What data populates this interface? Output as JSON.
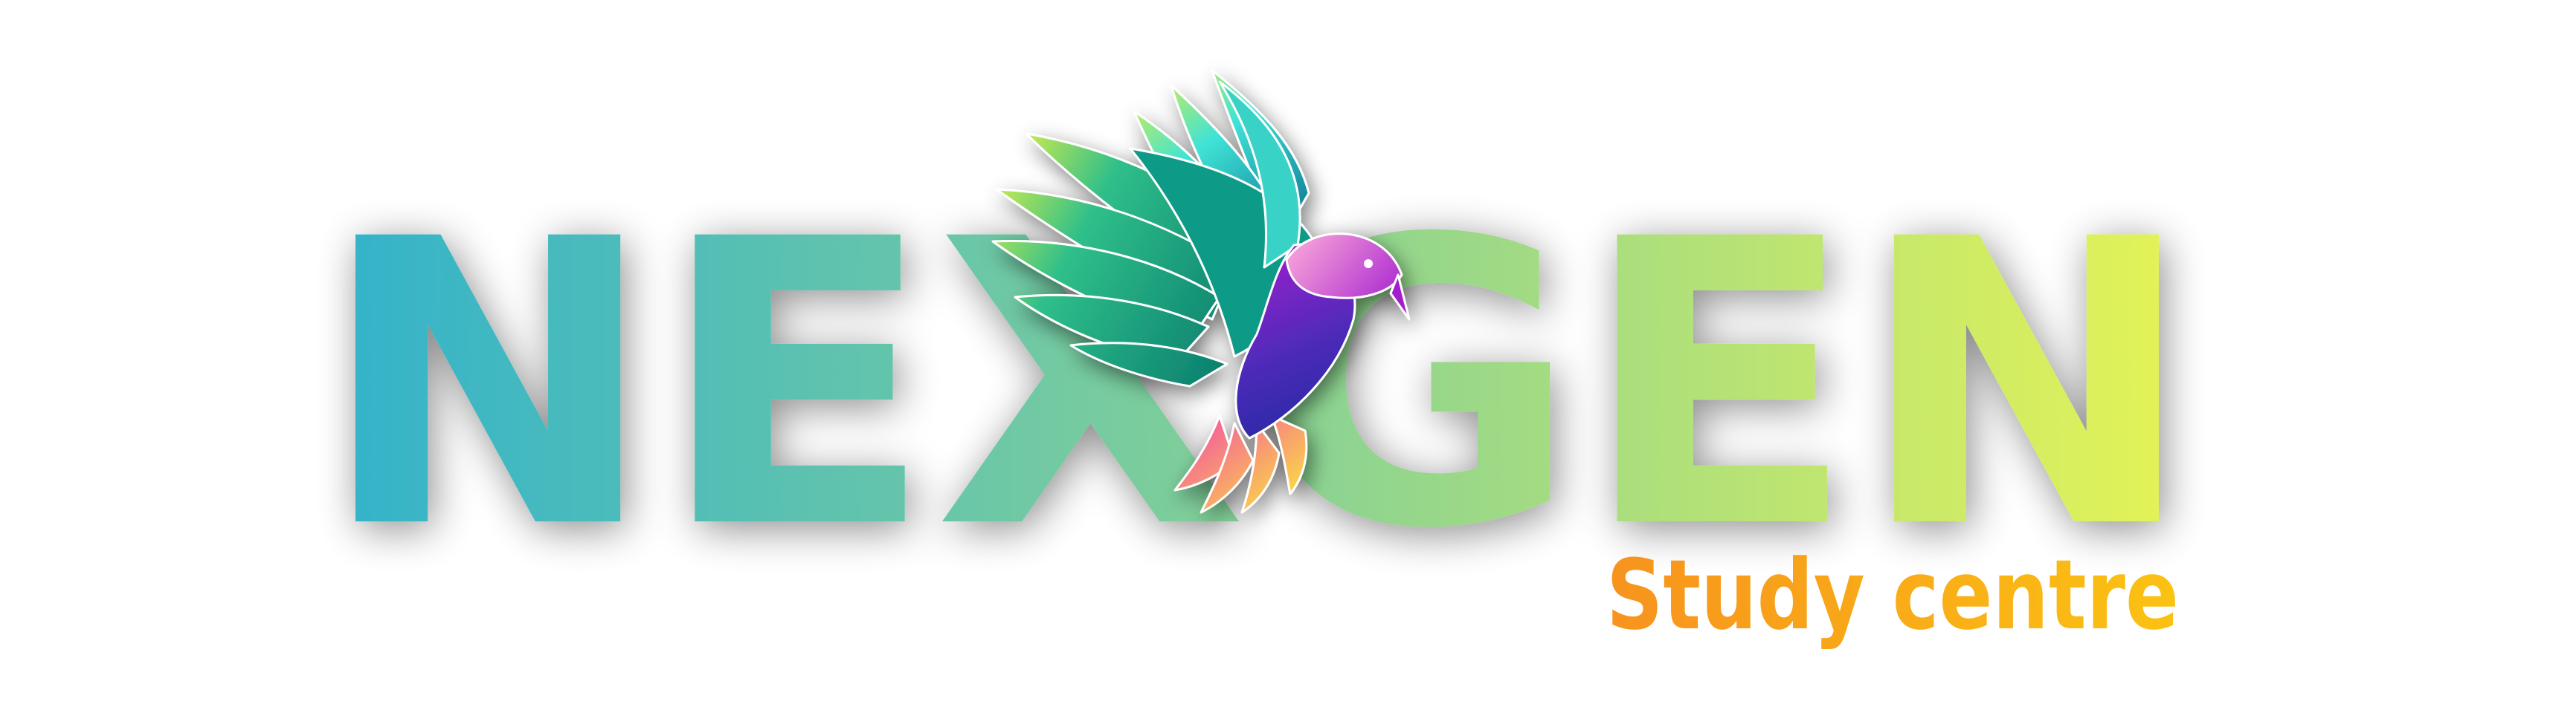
{
  "logo": {
    "wordmark": "NEXGEN",
    "tagline": "Study centre"
  },
  "colors": {
    "wordmark_gradient_start": "#31b2cc",
    "wordmark_gradient_mid": "#7ccd9c",
    "wordmark_gradient_end": "#e6f455",
    "tagline_gradient_start": "#f7931e",
    "tagline_gradient_end": "#fbc312",
    "bird_wing_dark": "#0a7e6e",
    "bird_wing_light": "#3fe3d6",
    "bird_wing_tip": "#d9ee4a",
    "bird_body_purple": "#a51fd0",
    "bird_body_blue": "#1c2a9c",
    "bird_tail_pink": "#f34fa6",
    "bird_tail_yellow": "#fbd34a"
  },
  "icons": {
    "emblem": "hummingbird-icon"
  }
}
